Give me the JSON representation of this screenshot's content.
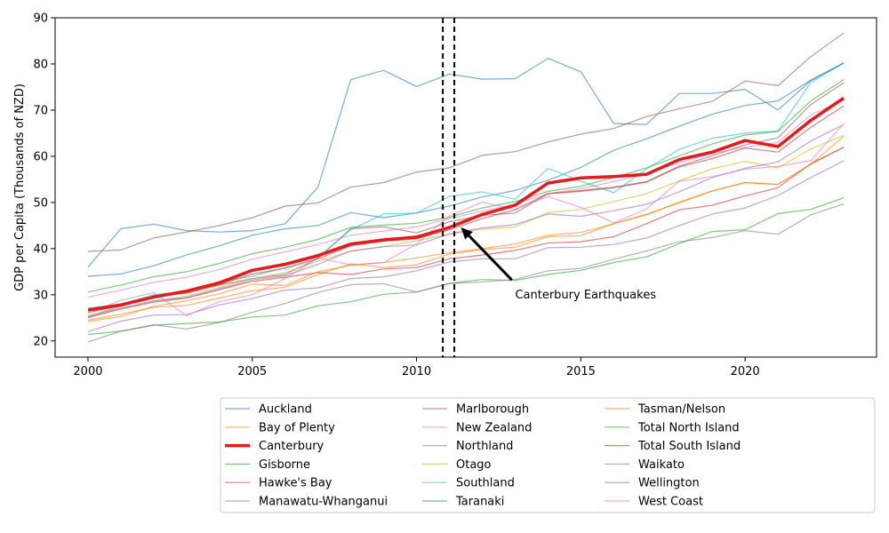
{
  "chart_data": {
    "type": "line",
    "title": "",
    "xlabel": "",
    "ylabel": "GDP per Capita (Thousands of NZD)",
    "xlim": [
      1999,
      2024
    ],
    "ylim": [
      16.5,
      90
    ],
    "xticks": [
      2000,
      2005,
      2010,
      2015,
      2020
    ],
    "yticks": [
      20,
      30,
      40,
      50,
      60,
      70,
      80,
      90
    ],
    "grid": false,
    "legend_position": "bottom",
    "x": [
      2000,
      2001,
      2002,
      2003,
      2004,
      2005,
      2006,
      2007,
      2008,
      2009,
      2010,
      2011,
      2012,
      2013,
      2014,
      2015,
      2016,
      2017,
      2018,
      2019,
      2020,
      2021,
      2022,
      2023
    ],
    "series": [
      {
        "name": "Auckland",
        "color": "#1f77b4",
        "highlight": false,
        "values": [
          34,
          34.5,
          36.3,
          38.6,
          40.6,
          42.9,
          44.3,
          45,
          47.8,
          46.7,
          47.7,
          49.2,
          51.2,
          52.6,
          54.8,
          57.6,
          61.3,
          63.8,
          66.5,
          69.1,
          71,
          72,
          76.5,
          80.2
        ]
      },
      {
        "name": "Bay of Plenty",
        "color": "#ff7f0e",
        "highlight": false,
        "values": [
          24.5,
          25.8,
          27.3,
          27.7,
          29.3,
          30.9,
          31.6,
          34.4,
          36.7,
          35.9,
          36.5,
          38.8,
          39.8,
          40.3,
          42.6,
          42.8,
          45.4,
          47.5,
          49.9,
          52.5,
          54.3,
          53.9,
          58.3,
          62
        ]
      },
      {
        "name": "Canterbury",
        "color": "#e41a1c",
        "highlight": true,
        "values": [
          26.7,
          27.8,
          29.5,
          30.8,
          32.6,
          35.3,
          36.6,
          38.5,
          41,
          41.9,
          42.5,
          44.6,
          47.4,
          49.4,
          54.2,
          55.3,
          55.6,
          56.1,
          59.3,
          60.9,
          63.4,
          62.1,
          67.8,
          72.6
        ]
      },
      {
        "name": "Gisborne",
        "color": "#2ca02c",
        "highlight": false,
        "values": [
          21.4,
          22.1,
          23.4,
          23.8,
          24.1,
          25.2,
          25.6,
          27.6,
          28.5,
          30.1,
          30.6,
          32.5,
          33.3,
          33.1,
          34.4,
          35.3,
          37,
          38.2,
          41.1,
          43.7,
          44.1,
          47.6,
          48.5,
          51
        ]
      },
      {
        "name": "Hawke's Bay",
        "color": "#d62728",
        "highlight": false,
        "values": [
          25.1,
          26.9,
          28.4,
          29.3,
          31.1,
          32.9,
          33.8,
          34.8,
          34.4,
          35.6,
          35.9,
          37.8,
          38.6,
          39.6,
          41.2,
          41.5,
          42.6,
          45.4,
          48.4,
          49.4,
          51.4,
          53.2,
          58.4,
          61.9
        ]
      },
      {
        "name": "Manawatu-Whanganui",
        "color": "#9467bd",
        "highlight": false,
        "values": [
          22,
          24.3,
          25.6,
          25.7,
          27.8,
          29.2,
          31,
          31.5,
          33.5,
          33.9,
          35.2,
          37.1,
          37.8,
          37.8,
          40.2,
          40.3,
          40.9,
          42.3,
          45,
          47.5,
          48.8,
          51.5,
          55.4,
          59
        ]
      },
      {
        "name": "Marlborough",
        "color": "#8c564b",
        "highlight": false,
        "values": [
          25.3,
          27.5,
          29.8,
          30.3,
          32.1,
          33.5,
          34.4,
          37.9,
          44.3,
          44.7,
          43.4,
          45.8,
          47.2,
          47.7,
          51.9,
          52.6,
          53.3,
          54.5,
          57.9,
          60.1,
          62.5,
          64,
          71.2,
          75.9
        ]
      },
      {
        "name": "New Zealand",
        "color": "#e377c2",
        "highlight": false,
        "values": [
          29.5,
          31,
          32.7,
          33.8,
          35.5,
          37.7,
          39.3,
          40.9,
          42.9,
          43.8,
          44.7,
          46.5,
          48.1,
          49.7,
          51.9,
          53,
          54.5,
          56.3,
          58.6,
          60.6,
          62,
          63,
          69,
          72.2
        ]
      },
      {
        "name": "Northland",
        "color": "#7f7f7f",
        "highlight": false,
        "values": [
          19.8,
          22.1,
          23.5,
          22.6,
          24,
          26.2,
          28.1,
          30.5,
          32.2,
          32.4,
          30.6,
          32.4,
          32.8,
          33.3,
          35.2,
          35.7,
          37.7,
          39.5,
          41.5,
          42.4,
          43.9,
          43.1,
          47.3,
          49.7
        ]
      },
      {
        "name": "Otago",
        "color": "#bcbd22",
        "highlight": false,
        "values": [
          25.5,
          27,
          28.6,
          29.7,
          31.6,
          33.5,
          34.8,
          37.3,
          39.4,
          40.5,
          41.7,
          43.1,
          44.2,
          44.7,
          47.8,
          48.5,
          50.2,
          51.9,
          54.7,
          57.3,
          58.9,
          57.5,
          61.6,
          64.5
        ]
      },
      {
        "name": "Southland",
        "color": "#17becf",
        "highlight": false,
        "values": [
          27.1,
          28,
          30,
          30.8,
          32.8,
          34,
          35.9,
          38.1,
          44.1,
          47.5,
          47.7,
          51.3,
          52.3,
          50.7,
          57.4,
          54.6,
          52.1,
          57.3,
          61.5,
          63.9,
          65,
          65.5,
          76,
          80.2
        ]
      },
      {
        "name": "Taranaki",
        "color": "#1f77b4",
        "highlight": false,
        "values": [
          36,
          44.3,
          45.3,
          43.9,
          43.6,
          43.9,
          45.4,
          53.3,
          76.6,
          78.6,
          75.1,
          77.8,
          76.7,
          76.8,
          81.2,
          78.3,
          67.1,
          66.9,
          73.6,
          73.6,
          74.5,
          70,
          76.4,
          80.2
        ]
      },
      {
        "name": "Tasman/Nelson",
        "color": "#ff7f0e",
        "highlight": false,
        "values": [
          24.2,
          25.3,
          27.5,
          28.7,
          30.2,
          32.3,
          32,
          35,
          36.4,
          37,
          38,
          39.1,
          40,
          41,
          42.9,
          43.5,
          45.4,
          47.3,
          50.1,
          52.5,
          54.3,
          53.9,
          58.3,
          64.3
        ]
      },
      {
        "name": "Total North Island",
        "color": "#2ca02c",
        "highlight": false,
        "values": [
          30.6,
          32.1,
          33.9,
          35,
          36.8,
          38.9,
          40.3,
          42,
          44.6,
          45.1,
          45.5,
          46.8,
          48.8,
          50.2,
          52.4,
          53.5,
          55.4,
          57.5,
          60.1,
          62.7,
          64.6,
          65.4,
          72,
          76.6
        ]
      },
      {
        "name": "Total South Island",
        "color": "#d62728",
        "highlight": false,
        "values": [
          26.1,
          27.7,
          29.5,
          30.5,
          32.2,
          34.5,
          35.7,
          37.8,
          40.6,
          41.6,
          42.1,
          44.1,
          46.5,
          48.4,
          51.9,
          52.4,
          53.2,
          54.4,
          57.7,
          59.5,
          61.8,
          60.9,
          66.3,
          70.9
        ]
      },
      {
        "name": "Waikato",
        "color": "#9467bd",
        "highlight": false,
        "values": [
          25,
          27.1,
          28.7,
          29.4,
          31.3,
          33.2,
          34.1,
          36.6,
          39.5,
          40.4,
          40.8,
          43.2,
          44.5,
          45.2,
          47.5,
          47,
          48.2,
          49.6,
          52.3,
          55.4,
          57.4,
          58.8,
          63.3,
          66.9
        ]
      },
      {
        "name": "Wellington",
        "color": "#8c564b",
        "highlight": false,
        "values": [
          39.4,
          39.7,
          42.3,
          43.6,
          45,
          46.7,
          49.2,
          49.9,
          53.3,
          54.3,
          56.6,
          57.5,
          60.2,
          61,
          63.1,
          64.8,
          66,
          68.6,
          70.3,
          71.9,
          76.3,
          75.3,
          81.6,
          86.7
        ]
      },
      {
        "name": "West Coast",
        "color": "#e377c2",
        "highlight": false,
        "values": [
          26,
          28.8,
          30.5,
          25.5,
          28.5,
          30,
          33.5,
          38,
          36.5,
          37,
          41,
          47.1,
          50.1,
          48.5,
          51.3,
          48.9,
          45.6,
          48.6,
          54.6,
          55.6,
          57.2,
          57.8,
          59.1,
          67
        ]
      }
    ],
    "vlines": [
      2010.8,
      2011.15
    ],
    "annotation": {
      "text": "Canterbury Earthquakes",
      "x": 2013,
      "y": 30,
      "arrow_from_x": 2012.9,
      "arrow_from_y": 33.2,
      "arrow_to_x": 2011.35,
      "arrow_to_y": 44.6
    }
  }
}
